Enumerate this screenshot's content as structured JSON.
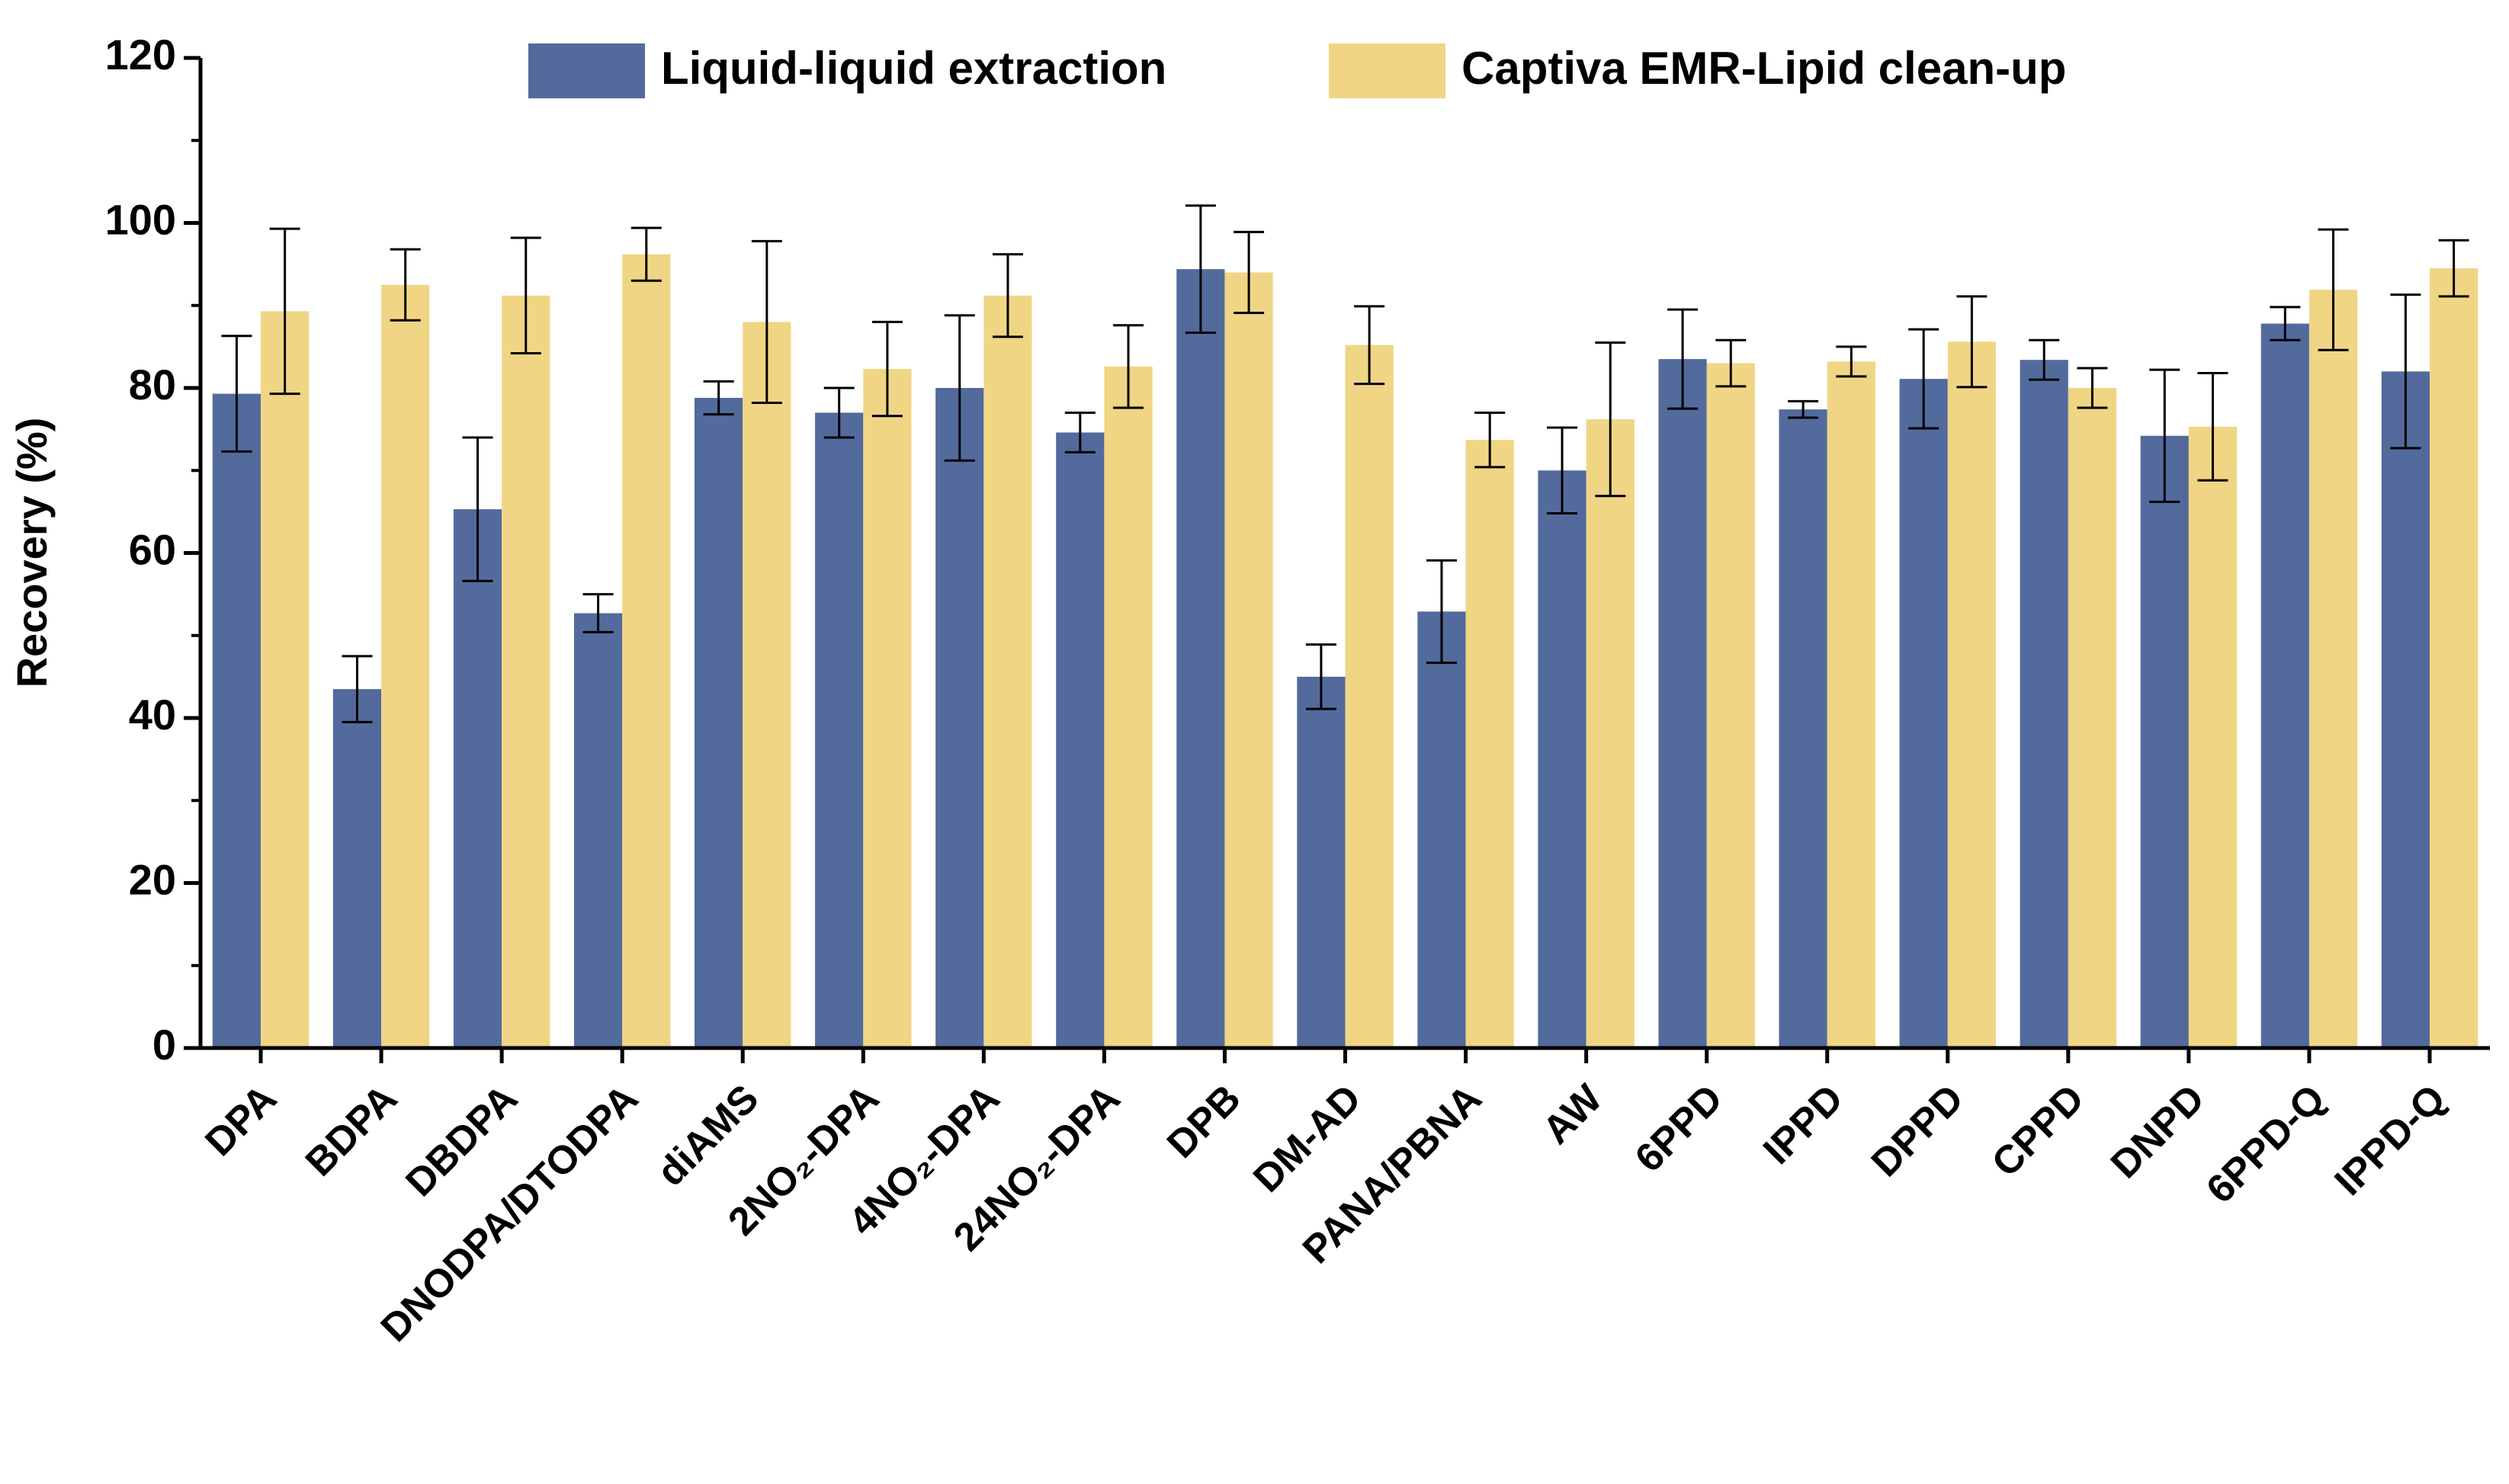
{
  "chart_data": {
    "type": "bar",
    "y_label": "Recovery (%)",
    "categories": [
      "DPA",
      "BDPA",
      "DBDPA",
      "DNODPA/DTODPA",
      "diAMS",
      "2NO₂-DPA",
      "4NO₂-DPA",
      "24NO₂-DPA",
      "DPB",
      "DM-AD",
      "PANA/PBNA",
      "AW",
      "6PPD",
      "IPPD",
      "DPPD",
      "CPPD",
      "DNPD",
      "6PPD-Q",
      "IPPD-Q"
    ],
    "series": [
      {
        "name": "Liquid-liquid extraction",
        "color": "#536a9c",
        "values": [
          79.3,
          43.5,
          65.3,
          52.7,
          78.8,
          77,
          80,
          74.6,
          94.4,
          45,
          52.9,
          70,
          83.5,
          77.4,
          81.1,
          83.4,
          74.2,
          87.8,
          82
        ],
        "errors": [
          7,
          4,
          8.7,
          2.3,
          2,
          3,
          8.8,
          2.4,
          7.7,
          3.9,
          6.2,
          5.2,
          6,
          1,
          6,
          2.4,
          8,
          2,
          9.3
        ]
      },
      {
        "name": "Captiva EMR-Lipid clean-up",
        "color": "#f0d585",
        "values": [
          89.3,
          92.5,
          91.2,
          96.2,
          88,
          82.3,
          91.2,
          82.6,
          94,
          85.2,
          73.7,
          76.2,
          83,
          83.2,
          85.6,
          80,
          75.3,
          91.9,
          94.5
        ],
        "errors": [
          10,
          4.3,
          7,
          3.2,
          9.8,
          5.7,
          5,
          5,
          4.9,
          4.7,
          3.3,
          9.3,
          2.8,
          1.8,
          5.5,
          2.4,
          6.5,
          7.3,
          3.4
        ]
      }
    ],
    "ylim": [
      0,
      120
    ],
    "yticks": [
      0,
      20,
      40,
      60,
      80,
      100,
      120
    ],
    "legend": "top"
  }
}
